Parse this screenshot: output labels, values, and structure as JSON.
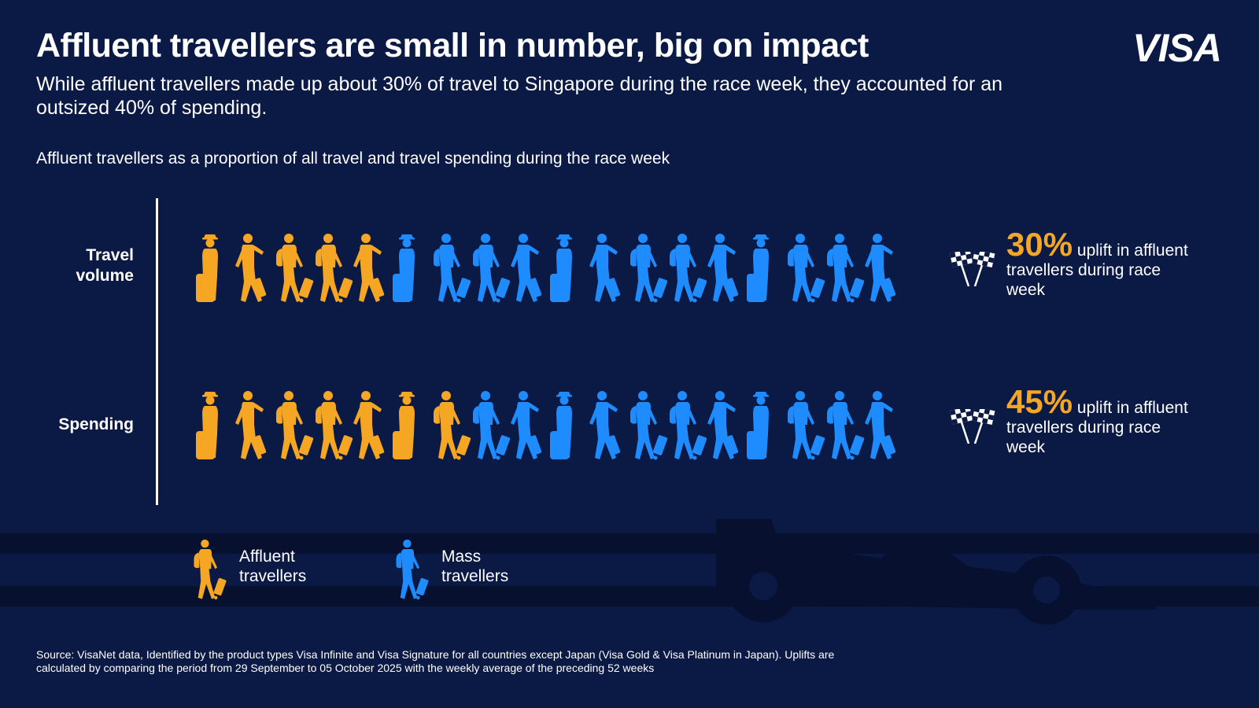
{
  "header": {
    "title": "Affluent travellers are small in number, big on impact",
    "subtitle": "While affluent travellers made up about 30% of travel to Singapore during the race week, they accounted for an outsized 40% of spending.",
    "logo_text": "VISA"
  },
  "chart_data": {
    "type": "pictogram",
    "title": "Affluent travellers as a proportion of all travel and travel spending during the race week",
    "icons_per_row": 18,
    "series_names": [
      "Affluent travellers",
      "Mass travellers"
    ],
    "rows": [
      {
        "label": "Travel\nvolume",
        "affluent_icons": 5,
        "total_icons": 18,
        "uplift_value": "30%",
        "uplift_text": "uplift in affluent travellers during race week"
      },
      {
        "label": "Spending",
        "affluent_icons": 7,
        "total_icons": 18,
        "uplift_value": "45%",
        "uplift_text": "uplift in affluent travellers during race week"
      }
    ]
  },
  "legend": [
    {
      "label": "Affluent\ntravellers",
      "color": "#f5a623"
    },
    {
      "label": "Mass\ntravellers",
      "color": "#1e8cff"
    }
  ],
  "colors": {
    "background": "#0b1a44",
    "affluent": "#f5a623",
    "mass": "#1e8cff"
  },
  "icons": {
    "traveller": "walking-traveller-icon",
    "flags": "checkered-flags-icon",
    "car": "race-car-silhouette"
  },
  "footer": {
    "source": "Source: VisaNet data, Identified by the product types Visa Infinite and Visa Signature for all countries except Japan (Visa Gold & Visa Platinum in Japan). Uplifts are  calculated by comparing the period from 29 September to 05 October 2025 with the weekly average of the preceding 52 weeks"
  }
}
